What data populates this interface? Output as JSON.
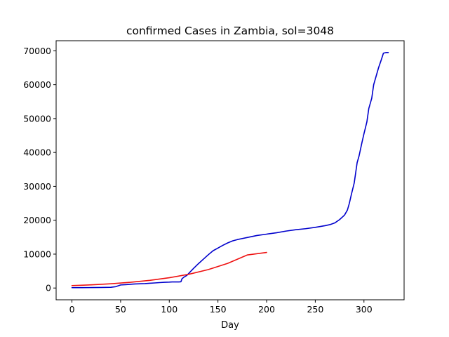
{
  "chart_data": {
    "type": "line",
    "title": "confirmed Cases in Zambia, sol=3048",
    "xlabel": "Day",
    "ylabel": "",
    "xlim": [
      -16.25,
      341.25
    ],
    "ylim": [
      -3475,
      72975
    ],
    "xticks": [
      0,
      50,
      100,
      150,
      200,
      250,
      300
    ],
    "yticks": [
      0,
      10000,
      20000,
      30000,
      40000,
      50000,
      60000,
      70000
    ],
    "grid": false,
    "series": [
      {
        "color": "#0000cc",
        "x": [
          0,
          10,
          20,
          30,
          40,
          45,
          48,
          50,
          55,
          60,
          62,
          65,
          70,
          75,
          80,
          85,
          90,
          95,
          100,
          103,
          105,
          110,
          112,
          113,
          115,
          118,
          120,
          125,
          130,
          135,
          140,
          145,
          150,
          155,
          160,
          165,
          170,
          175,
          180,
          190,
          200,
          210,
          220,
          230,
          240,
          250,
          260,
          265,
          270,
          275,
          280,
          283,
          285,
          287,
          290,
          293,
          295,
          298,
          300,
          303,
          305,
          308,
          310,
          313,
          315,
          318,
          320,
          323,
          325
        ],
        "y": [
          100,
          110,
          130,
          160,
          220,
          400,
          700,
          900,
          1000,
          1100,
          1150,
          1200,
          1250,
          1300,
          1400,
          1500,
          1600,
          1700,
          1750,
          1800,
          1800,
          1800,
          1850,
          2700,
          3200,
          3700,
          4300,
          5800,
          7200,
          8500,
          9800,
          11000,
          11800,
          12600,
          13300,
          13900,
          14300,
          14600,
          14900,
          15500,
          15900,
          16300,
          16800,
          17200,
          17500,
          17900,
          18400,
          18700,
          19200,
          20200,
          21500,
          23000,
          25000,
          27500,
          31000,
          37000,
          39000,
          43000,
          45500,
          49000,
          53000,
          56000,
          60000,
          63000,
          65000,
          67500,
          69300,
          69500,
          69500
        ]
      },
      {
        "color": "#ee1111",
        "x": [
          0,
          20,
          40,
          60,
          80,
          100,
          120,
          140,
          160,
          180,
          200
        ],
        "y": [
          700,
          940,
          1260,
          1690,
          2260,
          3030,
          4050,
          5430,
          7270,
          9740,
          10500
        ]
      }
    ]
  }
}
